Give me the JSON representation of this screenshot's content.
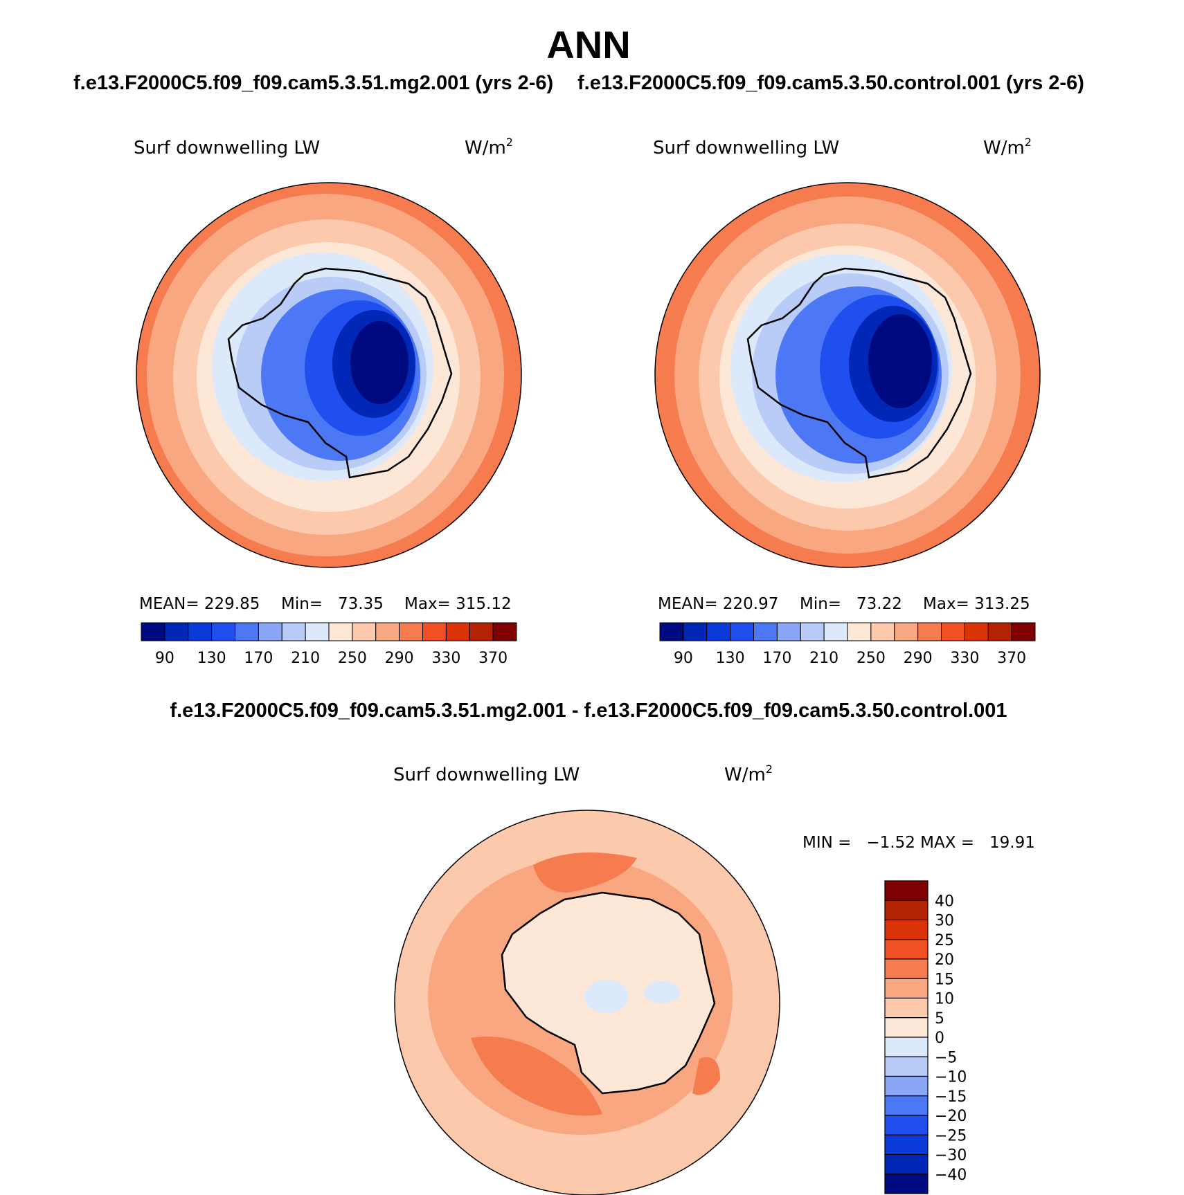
{
  "page": {
    "title": "ANN",
    "case_left": "f.e13.F2000C5.f09_f09.cam5.3.51.mg2.001 (yrs 2-6)",
    "case_right": "f.e13.F2000C5.f09_f09.cam5.3.50.control.001 (yrs 2-6)",
    "diff_title": "f.e13.F2000C5.f09_f09.cam5.3.51.mg2.001 - f.e13.F2000C5.f09_f09.cam5.3.50.control.001"
  },
  "chart_data": [
    {
      "type": "heatmap",
      "projection": "south-polar-stereographic",
      "variable": "Surf downwelling LW",
      "units_base": "W/m",
      "units_sup": "2",
      "mean_text": "MEAN= 229.85",
      "min_text": "Min=   73.35",
      "max_text": "Max= 315.12",
      "mean": 229.85,
      "min": 73.35,
      "max": 315.12,
      "colorbar": {
        "orientation": "horizontal",
        "tick_labels": [
          "90",
          "130",
          "170",
          "210",
          "250",
          "290",
          "330",
          "370"
        ],
        "colors": [
          "#000a80",
          "#0027b5",
          "#0a3ad8",
          "#1f4fee",
          "#4d78f5",
          "#8aa6f7",
          "#b9ccf8",
          "#dce9fb",
          "#fde8d8",
          "#fcc9ad",
          "#f9a781",
          "#f67b4f",
          "#f15025",
          "#db3408",
          "#b32303",
          "#7f0000"
        ]
      }
    },
    {
      "type": "heatmap",
      "projection": "south-polar-stereographic",
      "variable": "Surf downwelling LW",
      "units_base": "W/m",
      "units_sup": "2",
      "mean_text": "MEAN= 220.97",
      "min_text": "Min=   73.22",
      "max_text": "Max= 313.25",
      "mean": 220.97,
      "min": 73.22,
      "max": 313.25,
      "colorbar": {
        "orientation": "horizontal",
        "tick_labels": [
          "90",
          "130",
          "170",
          "210",
          "250",
          "290",
          "330",
          "370"
        ],
        "colors": [
          "#000a80",
          "#0027b5",
          "#0a3ad8",
          "#1f4fee",
          "#4d78f5",
          "#8aa6f7",
          "#b9ccf8",
          "#dce9fb",
          "#fde8d8",
          "#fcc9ad",
          "#f9a781",
          "#f67b4f",
          "#f15025",
          "#db3408",
          "#b32303",
          "#7f0000"
        ]
      }
    },
    {
      "type": "heatmap",
      "projection": "south-polar-stereographic",
      "variable": "Surf downwelling LW",
      "units_base": "W/m",
      "units_sup": "2",
      "minmax_text": "MIN =   −1.52 MAX =   19.91",
      "min": -1.52,
      "max": 19.91,
      "colorbar": {
        "orientation": "vertical",
        "tick_labels": [
          "40",
          "30",
          "25",
          "20",
          "15",
          "10",
          "5",
          "0",
          "−5",
          "−10",
          "−15",
          "−20",
          "−25",
          "−30",
          "−40"
        ],
        "colors": [
          "#7f0000",
          "#b32303",
          "#db3408",
          "#f15025",
          "#f67b4f",
          "#f9a781",
          "#fcc9ad",
          "#fde8d8",
          "#dce9fb",
          "#b9ccf8",
          "#8aa6f7",
          "#4d78f5",
          "#1f4fee",
          "#0a3ad8",
          "#0027b5",
          "#000a80"
        ]
      }
    }
  ]
}
